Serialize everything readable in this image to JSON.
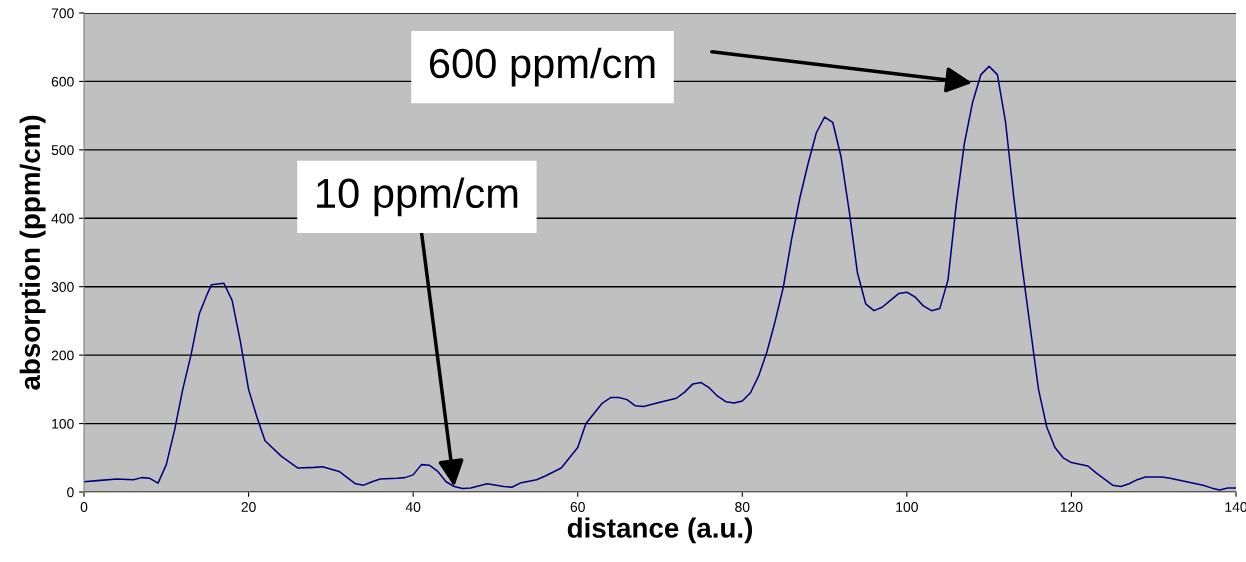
{
  "chart_data": {
    "type": "line",
    "xlabel": "distance (a.u.)",
    "ylabel": "absorption (ppm/cm)",
    "xlim": [
      0,
      140
    ],
    "xticks": [
      0,
      20,
      40,
      60,
      80,
      100,
      120,
      140
    ],
    "ylim": [
      0,
      700
    ],
    "yticks": [
      0,
      100,
      200,
      300,
      400,
      500,
      600,
      700
    ],
    "grid": "y",
    "legend": false,
    "marker": "none",
    "line_style": "solid",
    "annotations": [
      "600 ppm/cm",
      {
        "text": "10 ppm/cm",
        "x": 45,
        "y": 8
      }
    ],
    "series": [
      {
        "color": "#000080",
        "x": [
          0,
          2,
          4,
          6,
          7,
          8,
          9,
          10,
          11,
          12,
          13,
          14,
          15,
          15.5,
          17,
          18,
          19,
          20,
          21,
          22,
          24,
          26,
          28,
          29,
          31,
          33,
          34,
          35,
          36,
          38,
          39,
          40,
          41,
          42,
          43,
          44,
          45,
          46,
          47,
          49,
          51,
          52,
          53,
          55,
          56,
          58,
          60,
          61,
          62,
          63,
          64,
          65,
          66,
          67,
          68,
          70,
          72,
          73,
          74,
          75,
          76,
          77,
          78,
          79,
          80,
          81,
          82,
          83,
          84,
          85,
          86,
          87,
          88,
          89,
          90,
          91,
          92,
          93,
          94,
          95,
          96,
          97,
          98,
          99,
          100,
          101,
          102,
          103,
          104,
          105,
          106,
          107,
          108,
          109,
          110,
          111,
          112,
          113,
          114,
          115,
          116,
          117,
          118,
          119,
          120,
          122,
          123,
          125,
          126,
          127,
          128,
          129,
          131,
          132,
          134,
          136,
          137,
          138,
          139,
          140
        ],
        "values": [
          15,
          17,
          19,
          18,
          21,
          20,
          13,
          40,
          90,
          150,
          200,
          260,
          290,
          303,
          305,
          280,
          220,
          150,
          110,
          75,
          52,
          35,
          36,
          37,
          30,
          12,
          10,
          15,
          19,
          20,
          21,
          25,
          40,
          39,
          30,
          15,
          8,
          5,
          6,
          12,
          8,
          7,
          13,
          18,
          23,
          35,
          65,
          100,
          115,
          130,
          138,
          138,
          135,
          126,
          125,
          131,
          137,
          146,
          158,
          160,
          152,
          140,
          132,
          130,
          133,
          145,
          170,
          205,
          250,
          300,
          370,
          430,
          480,
          525,
          548,
          540,
          490,
          410,
          320,
          275,
          265,
          270,
          280,
          290,
          292,
          285,
          272,
          265,
          268,
          310,
          420,
          510,
          570,
          610,
          622,
          610,
          540,
          430,
          330,
          240,
          150,
          95,
          65,
          50,
          43,
          38,
          28,
          10,
          8,
          12,
          18,
          22,
          22,
          20,
          15,
          10,
          6,
          3,
          6,
          6
        ]
      }
    ]
  }
}
